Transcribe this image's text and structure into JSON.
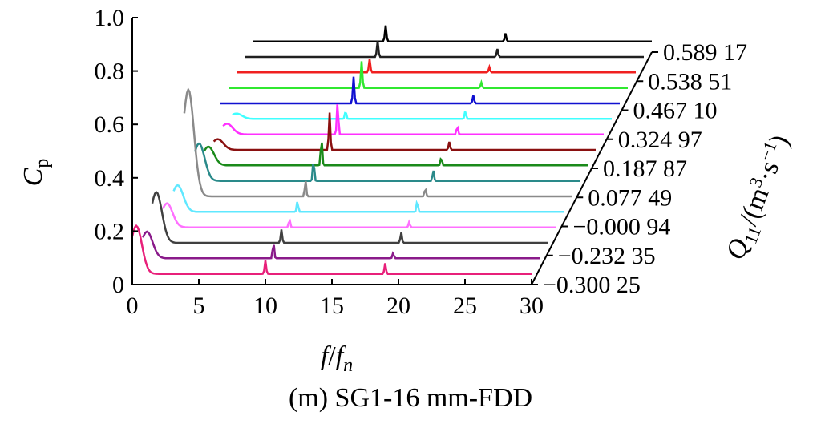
{
  "caption": "(m) SG1-16 mm-FDD",
  "chart_data": {
    "type": "waterfall",
    "xlabel_parts": [
      "f",
      "/",
      "f",
      "n"
    ],
    "ylabel_parts": [
      "C",
      "p"
    ],
    "zlabel_parts": [
      "Q",
      "11",
      "/(m",
      "3",
      "·s",
      "−1",
      ")"
    ],
    "xlim": [
      0,
      30
    ],
    "ylim": [
      0,
      1.0
    ],
    "x_ticks": [
      0,
      5,
      10,
      15,
      20,
      25,
      30
    ],
    "x_tick_labels": [
      "0",
      "5",
      "10",
      "15",
      "20",
      "25",
      "30"
    ],
    "y_ticks": [
      0,
      0.2,
      0.4,
      0.6,
      0.8,
      1.0
    ],
    "y_tick_labels": [
      "0",
      "0.2",
      "0.4",
      "0.6",
      "0.8",
      "1.0"
    ],
    "z_tick_labels": [
      "−0.300 25",
      "−0.232 35",
      "−0.000 94",
      "0.077 49",
      "0.187 87",
      "0.324 97",
      "0.467 10",
      "0.538 51",
      "0.589 17"
    ],
    "series": [
      {
        "color": "#e8207a",
        "peaks": [
          [
            0.3,
            0.18
          ],
          [
            10,
            0.05
          ],
          [
            19,
            0.04
          ]
        ]
      },
      {
        "color": "#8a1a8a",
        "peaks": [
          [
            0.5,
            0.1
          ],
          [
            10,
            0.06
          ],
          [
            19,
            0.02
          ]
        ]
      },
      {
        "color": "#404040",
        "peaks": [
          [
            0.6,
            0.19
          ],
          [
            10,
            0.05
          ],
          [
            19,
            0.04
          ]
        ]
      },
      {
        "color": "#ff70ff",
        "peaks": [
          [
            0.8,
            0.09
          ],
          [
            10,
            0.03
          ],
          [
            19,
            0.02
          ]
        ]
      },
      {
        "color": "#60e8ff",
        "peaks": [
          [
            1.0,
            0.1
          ],
          [
            10,
            0.04
          ],
          [
            19,
            0.04
          ]
        ]
      },
      {
        "color": "#8a8a8a",
        "peaks": [
          [
            1.2,
            0.4
          ],
          [
            10,
            0.06
          ],
          [
            19,
            0.03
          ]
        ]
      },
      {
        "color": "#2a8a8a",
        "peaks": [
          [
            1.4,
            0.14
          ],
          [
            10,
            0.08
          ],
          [
            19,
            0.04
          ]
        ]
      },
      {
        "color": "#1a8a1a",
        "peaks": [
          [
            1.5,
            0.07
          ],
          [
            10,
            0.1
          ],
          [
            19,
            0.03
          ]
        ]
      },
      {
        "color": "#8a1010",
        "peaks": [
          [
            1.6,
            0.04
          ],
          [
            10,
            0.14
          ],
          [
            19,
            0.03
          ]
        ]
      },
      {
        "color": "#ff30ff",
        "peaks": [
          [
            1.7,
            0.04
          ],
          [
            10,
            0.12
          ],
          [
            19,
            0.03
          ]
        ]
      },
      {
        "color": "#40ffff",
        "peaks": [
          [
            1.8,
            0.02
          ],
          [
            10,
            0.03
          ],
          [
            19,
            0.03
          ]
        ]
      },
      {
        "color": "#1010d0",
        "peaks": [
          [
            10,
            0.1
          ],
          [
            19,
            0.03
          ]
        ]
      },
      {
        "color": "#30e830",
        "peaks": [
          [
            10,
            0.1
          ],
          [
            19,
            0.02
          ]
        ]
      },
      {
        "color": "#f02020",
        "peaks": [
          [
            10,
            0.05
          ],
          [
            19,
            0.02
          ]
        ]
      },
      {
        "color": "#202020",
        "peaks": [
          [
            10,
            0.06
          ],
          [
            19,
            0.03
          ]
        ]
      },
      {
        "color": "#000000",
        "peaks": [
          [
            10,
            0.06
          ],
          [
            19,
            0.03
          ]
        ]
      }
    ]
  }
}
